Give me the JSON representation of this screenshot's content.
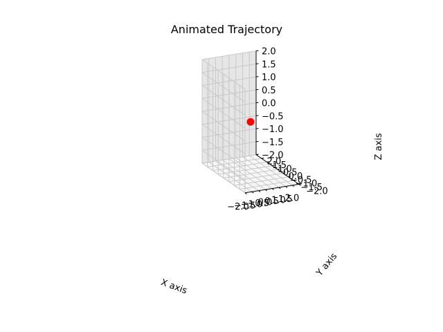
{
  "chart_data": {
    "type": "scatter",
    "projection": "3d",
    "title": "Animated Trajectory",
    "xlabel": "X axis",
    "ylabel": "Y axis",
    "zlabel": "Z axis",
    "xlim": [
      -2.0,
      2.0
    ],
    "ylim": [
      -2.0,
      2.0
    ],
    "zlim": [
      -2.0,
      2.0
    ],
    "xticks": [
      "−2.0",
      "−1.5",
      "−1.0",
      "−0.5",
      "0.0",
      "0.5",
      "1.0",
      "1.5",
      "2.0"
    ],
    "yticks": [
      "−2.0",
      "−1.5",
      "−1.0",
      "−0.5",
      "0.0",
      "0.5",
      "1.0",
      "1.5",
      "2.0"
    ],
    "zticks": [
      "−2.0",
      "−1.5",
      "−1.0",
      "−0.5",
      "0.0",
      "0.5",
      "1.0",
      "1.5",
      "2.0"
    ],
    "grid": true,
    "points": [
      {
        "x": 0.0,
        "y": 0.0,
        "z": 0.0,
        "color": "#ff0000"
      }
    ]
  }
}
